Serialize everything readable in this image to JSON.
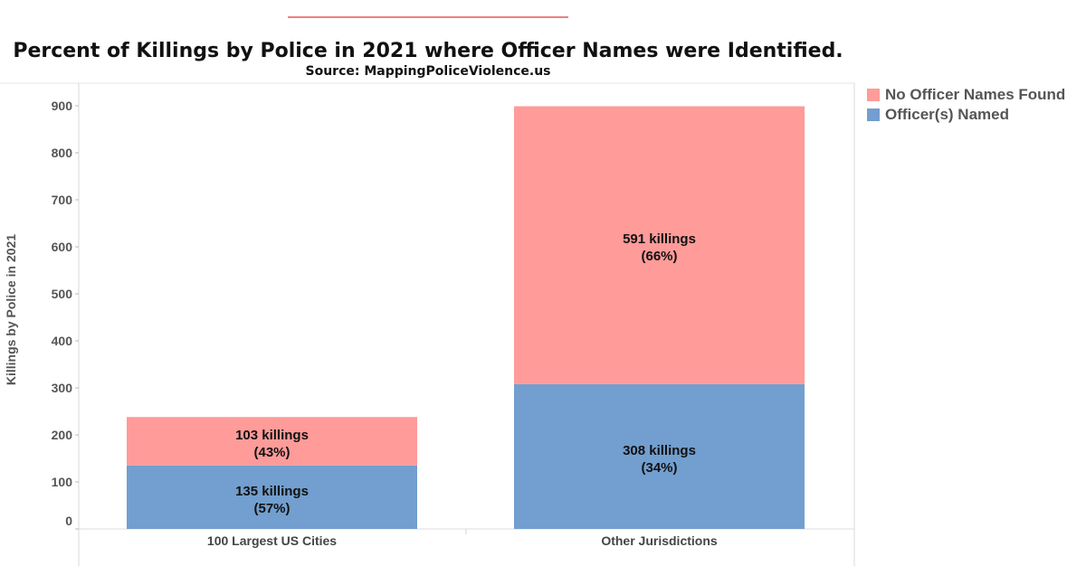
{
  "title": "Percent of Killings by Police in 2021 where Officer Names were Identified.",
  "subtitle": "Source: MappingPoliceViolence.us",
  "colors": {
    "accent_line": "#f08080",
    "no_names": "#ff9b99",
    "named": "#729fcf"
  },
  "legend": [
    {
      "label": "No Officer Names Found",
      "color": "#ff9b99"
    },
    {
      "label": "Officer(s) Named",
      "color": "#729fcf"
    }
  ],
  "chart_data": {
    "type": "bar",
    "stacked": true,
    "categories": [
      "100 Largest US Cities",
      "Other Jurisdictions"
    ],
    "series": [
      {
        "name": "Officer(s) Named",
        "values": [
          135,
          308
        ],
        "labels": [
          "135 killings",
          "308 killings"
        ],
        "percent_labels": [
          "(57%)",
          "(34%)"
        ],
        "color": "#729fcf"
      },
      {
        "name": "No Officer Names Found",
        "values": [
          103,
          591
        ],
        "labels": [
          "103 killings",
          "591 killings"
        ],
        "percent_labels": [
          "(43%)",
          "(66%)"
        ],
        "color": "#ff9b99"
      }
    ],
    "ylabel": "Killings by Police in 2021",
    "yticks": [
      0,
      100,
      200,
      300,
      400,
      500,
      600,
      700,
      800,
      900
    ],
    "ylim": [
      0,
      940
    ],
    "grid": false,
    "legend_position": "top-right"
  }
}
